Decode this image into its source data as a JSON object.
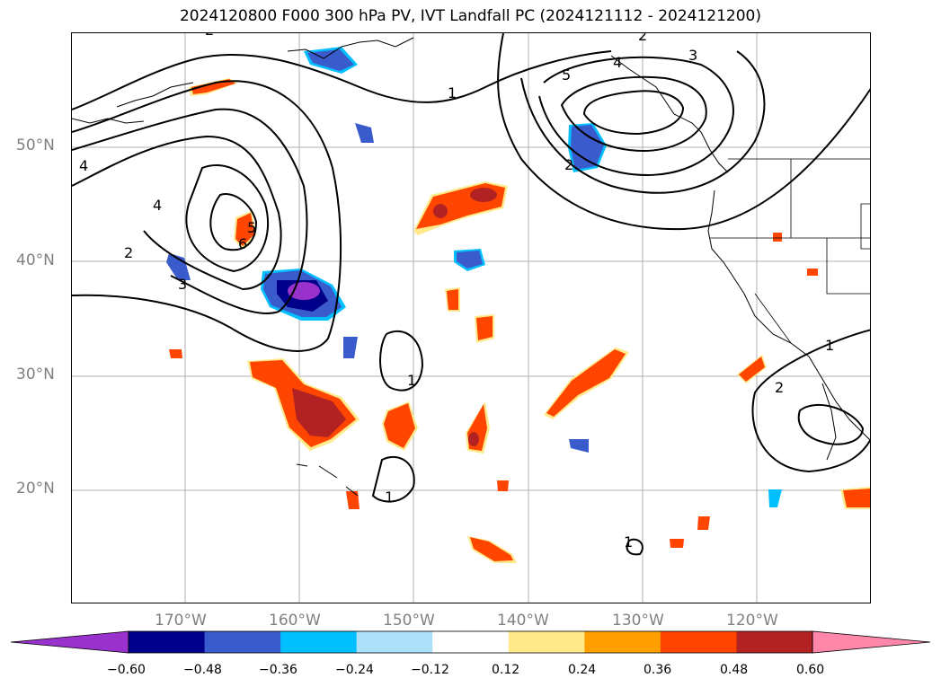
{
  "title": "2024120800 F000 300 hPa PV, IVT Landfall PC (2024121112 - 2024121200)",
  "map": {
    "projection": "plate-carree",
    "lon_range": [
      -180,
      -110
    ],
    "lat_range": [
      10,
      60
    ],
    "gridlines": true,
    "coastlines": true,
    "state_borders": true
  },
  "lat_labels": [
    {
      "id": "50",
      "text": "50°N"
    },
    {
      "id": "40",
      "text": "40°N"
    },
    {
      "id": "30",
      "text": "30°N"
    },
    {
      "id": "20",
      "text": "20°N"
    }
  ],
  "lon_labels": [
    {
      "id": "170",
      "text": "170°W"
    },
    {
      "id": "160",
      "text": "160°W"
    },
    {
      "id": "150",
      "text": "150°W"
    },
    {
      "id": "140",
      "text": "140°W"
    },
    {
      "id": "130",
      "text": "130°W"
    },
    {
      "id": "120",
      "text": "120°W"
    }
  ],
  "contour_labels": [
    {
      "text": "1"
    },
    {
      "text": "2"
    },
    {
      "text": "3"
    },
    {
      "text": "4"
    },
    {
      "text": "5"
    },
    {
      "text": "6"
    }
  ],
  "colorbar": {
    "colors": [
      "#9932CC",
      "#00008B",
      "#3A5BCC",
      "#00BFFF",
      "#ADE1FA",
      "#FFFFFF",
      "#FFE98A",
      "#FFA000",
      "#FF4500",
      "#B22222",
      "#FF88AA"
    ],
    "ticks": [
      "−0.60",
      "−0.48",
      "−0.36",
      "−0.24",
      "−0.12",
      "0.12",
      "0.24",
      "0.36",
      "0.48",
      "0.60"
    ],
    "extend": "both"
  },
  "colors": {
    "positive_strong": "#B22222",
    "positive": "#FF4500",
    "positive_edge": "#FFE98A",
    "negative": "#3A5BCC",
    "negative_strong": "#00008B",
    "negative_extreme": "#9932CC",
    "negative_edge": "#00BFFF",
    "contour": "#000000",
    "grid": "#b0b0b0"
  }
}
